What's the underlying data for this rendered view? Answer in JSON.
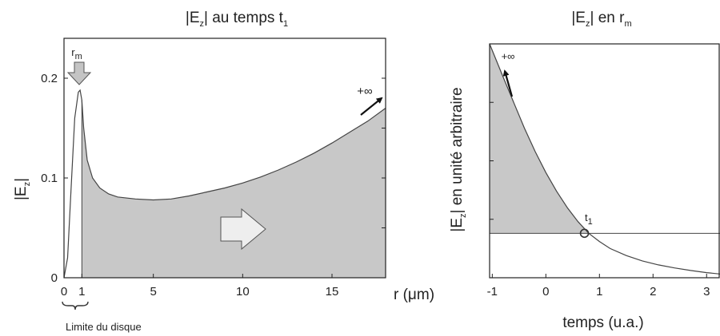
{
  "chart_data": [
    {
      "type": "area",
      "title": "|Ez| au temps t1",
      "title_parts": {
        "main": "|E",
        "sub": "z",
        "rest": "| au temps t",
        "sub2": "1"
      },
      "ylabel_parts": {
        "main": "|E",
        "sub": "z",
        "rest": "|"
      },
      "xlabel": "r (μm)",
      "xlim": [
        0,
        18
      ],
      "ylim": [
        0,
        0.24
      ],
      "xticks": [
        {
          "v": 0,
          "label": "0"
        },
        {
          "v": 1,
          "label": "1"
        },
        {
          "v": 5,
          "label": "5"
        },
        {
          "v": 10,
          "label": "10"
        },
        {
          "v": 15,
          "label": "15"
        }
      ],
      "yticks": [
        {
          "v": 0,
          "label": "0"
        },
        {
          "v": 0.1,
          "label": "0.1"
        },
        {
          "v": 0.2,
          "label": "0.2"
        }
      ],
      "curve": {
        "x": [
          0,
          0.2,
          0.4,
          0.6,
          0.8,
          0.9,
          1.0,
          1.1,
          1.3,
          1.6,
          2,
          2.5,
          3,
          4,
          5,
          6,
          7,
          8,
          9,
          10,
          11,
          12,
          13,
          14,
          15,
          16,
          17,
          18
        ],
        "y": [
          0,
          0.02,
          0.09,
          0.16,
          0.186,
          0.188,
          0.178,
          0.15,
          0.118,
          0.1,
          0.09,
          0.084,
          0.081,
          0.079,
          0.078,
          0.079,
          0.082,
          0.086,
          0.09,
          0.095,
          0.101,
          0.108,
          0.116,
          0.125,
          0.135,
          0.146,
          0.157,
          0.17
        ]
      },
      "shaded_from_x": 1,
      "annotations": {
        "rm_main": "r",
        "rm_sub": "m",
        "infinity": "+∞",
        "disk_limit": "Limite du disque"
      }
    },
    {
      "type": "area",
      "title_parts": {
        "main": "|E",
        "sub": "z",
        "rest": "| en r",
        "sub2": "m"
      },
      "ylabel_parts": {
        "main": "|E",
        "sub": "z",
        "rest": "| en unité arbitraire"
      },
      "xlabel": "temps (u.a.)",
      "xlim": [
        -1.05,
        3.25
      ],
      "ylim": [
        0,
        1
      ],
      "xticks": [
        {
          "v": -1,
          "label": "-1"
        },
        {
          "v": 0,
          "label": "0"
        },
        {
          "v": 1,
          "label": "1"
        },
        {
          "v": 2,
          "label": "2"
        },
        {
          "v": 3,
          "label": "3"
        }
      ],
      "curve": {
        "x": [
          -1.05,
          -0.8,
          -0.6,
          -0.4,
          -0.2,
          0,
          0.2,
          0.4,
          0.6,
          0.8,
          1.0,
          1.2,
          1.5,
          1.8,
          2.1,
          2.4,
          2.7,
          3.0,
          3.25
        ],
        "y": [
          1.0,
          0.86,
          0.75,
          0.64,
          0.54,
          0.45,
          0.37,
          0.3,
          0.24,
          0.19,
          0.155,
          0.125,
          0.095,
          0.072,
          0.055,
          0.042,
          0.031,
          0.022,
          0.016
        ]
      },
      "threshold_y": 0.19,
      "t1_x": 0.72,
      "annotations": {
        "t1_main": "t",
        "t1_sub": "1",
        "infinity": "+∞"
      }
    }
  ]
}
